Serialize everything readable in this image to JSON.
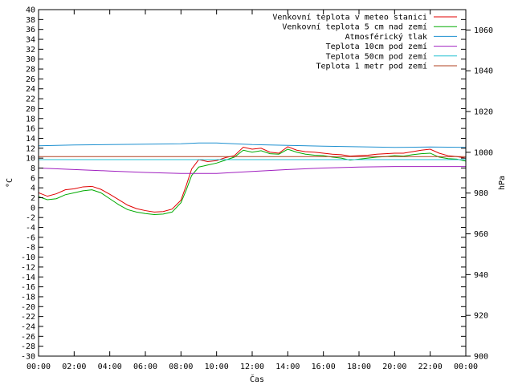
{
  "chart_data": {
    "type": "line",
    "title": "",
    "xlabel": "Čas",
    "ylabel_left": "°C",
    "ylabel_right": "hPa",
    "ylim_left": [
      -30,
      40
    ],
    "ylim_right": [
      900,
      1070
    ],
    "xlim_hours": [
      0,
      24
    ],
    "grid": false,
    "legend_position": "top-right",
    "x_ticks": [
      "00:00",
      "02:00",
      "04:00",
      "06:00",
      "08:00",
      "10:00",
      "12:00",
      "14:00",
      "16:00",
      "18:00",
      "20:00",
      "22:00",
      "00:00"
    ],
    "y_left_ticks": [
      40,
      38,
      36,
      34,
      32,
      30,
      28,
      26,
      24,
      22,
      20,
      18,
      16,
      14,
      12,
      10,
      8,
      6,
      4,
      2,
      0,
      -2,
      -4,
      -6,
      -8,
      -10,
      -12,
      -14,
      -16,
      -18,
      -20,
      -22,
      -24,
      -26,
      -28,
      -30
    ],
    "y_right_ticks": [
      1060,
      1040,
      1020,
      1000,
      980,
      960,
      940,
      920,
      900
    ],
    "series": [
      {
        "name": "Venkovní teplota v meteo stanici",
        "color": "#e00000",
        "axis": "left",
        "x": [
          0,
          0.5,
          1,
          1.5,
          2,
          2.5,
          3,
          3.5,
          4,
          4.5,
          5,
          5.5,
          6,
          6.5,
          7,
          7.5,
          8,
          8.3,
          8.6,
          9,
          9.5,
          10,
          10.5,
          11,
          11.5,
          12,
          12.5,
          13,
          13.5,
          14,
          14.5,
          15,
          15.5,
          16,
          16.5,
          17,
          17.5,
          18,
          18.5,
          19,
          19.5,
          20,
          20.5,
          21,
          21.5,
          22,
          22.5,
          23,
          23.5,
          24
        ],
        "y": [
          3,
          2.3,
          2.8,
          3.6,
          3.8,
          4.2,
          4.3,
          3.7,
          2.7,
          1.6,
          0.5,
          -0.2,
          -0.6,
          -0.9,
          -0.8,
          -0.3,
          1.5,
          4.5,
          7.8,
          9.7,
          9.3,
          9.5,
          10.1,
          10.5,
          12.2,
          11.8,
          12,
          11.2,
          11,
          12.3,
          11.6,
          11.3,
          11.2,
          11,
          10.8,
          10.7,
          10.4,
          10.5,
          10.6,
          10.8,
          10.9,
          11,
          11,
          11.3,
          11.6,
          11.8,
          11,
          10.5,
          10.3,
          10
        ]
      },
      {
        "name": "Venkovní teplota 5 cm nad zemí",
        "color": "#00aa00",
        "axis": "left",
        "x": [
          0,
          0.5,
          1,
          1.5,
          2,
          2.5,
          3,
          3.5,
          4,
          4.5,
          5,
          5.5,
          6,
          6.5,
          7,
          7.5,
          8,
          8.3,
          8.6,
          9,
          9.5,
          10,
          10.5,
          11,
          11.5,
          12,
          12.5,
          13,
          13.5,
          14,
          14.5,
          15,
          15.5,
          16,
          16.5,
          17,
          17.5,
          18,
          18.5,
          19,
          19.5,
          20,
          20.5,
          21,
          21.5,
          22,
          22.5,
          23,
          23.5,
          24
        ],
        "y": [
          2.2,
          1.6,
          1.8,
          2.6,
          3,
          3.4,
          3.6,
          3,
          1.8,
          0.6,
          -0.4,
          -0.9,
          -1.2,
          -1.4,
          -1.3,
          -0.9,
          1,
          3.6,
          6.5,
          8.2,
          8.6,
          9,
          9.6,
          10.2,
          11.6,
          11.2,
          11.5,
          10.9,
          10.8,
          11.8,
          11.2,
          10.8,
          10.6,
          10.5,
          10.2,
          10,
          9.6,
          9.8,
          10,
          10.2,
          10.3,
          10.5,
          10.4,
          10.7,
          10.9,
          11,
          10.2,
          9.9,
          9.8,
          9.4
        ]
      },
      {
        "name": "Atmosférický tlak",
        "color": "#1e90d0",
        "axis": "right",
        "x": [
          0,
          2,
          4,
          6,
          8,
          9,
          10,
          11,
          12,
          14,
          16,
          18,
          20,
          22,
          24
        ],
        "y": [
          1003.2,
          1003.6,
          1003.8,
          1004,
          1004.2,
          1004.6,
          1004.6,
          1004.2,
          1003.8,
          1003.4,
          1003,
          1002.7,
          1002.4,
          1002.6,
          1002.4
        ]
      },
      {
        "name": "Teplota 10cm pod zemí",
        "color": "#a020c0",
        "axis": "left",
        "x": [
          0,
          2,
          4,
          6,
          8,
          10,
          12,
          14,
          16,
          18,
          20,
          22,
          24
        ],
        "y": [
          8,
          7.7,
          7.4,
          7.1,
          6.9,
          6.9,
          7.3,
          7.7,
          8,
          8.2,
          8.3,
          8.3,
          8.3
        ]
      },
      {
        "name": "Teplota 50cm pod zemí",
        "color": "#20c0d0",
        "axis": "left",
        "x": [
          0,
          24
        ],
        "y": [
          9.7,
          9.7
        ]
      },
      {
        "name": "Teplota 1 metr pod zemí",
        "color": "#b04020",
        "axis": "left",
        "x": [
          0,
          24
        ],
        "y": [
          10.3,
          10.3
        ]
      }
    ]
  }
}
